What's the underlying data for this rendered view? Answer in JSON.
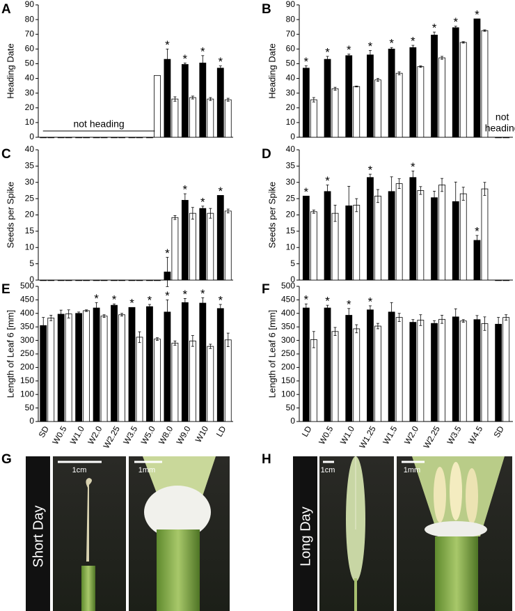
{
  "chart_data": [
    {
      "type": "bar",
      "panel": "A",
      "ylabel": "Heading Date",
      "categories": [
        null,
        null,
        null,
        null,
        null,
        null,
        null,
        null,
        null,
        null,
        null
      ],
      "series": [
        {
          "color": "#000000",
          "values": [
            0,
            0,
            0,
            0,
            0,
            0,
            0,
            53,
            49.5,
            50.5,
            47
          ],
          "errors": [
            0,
            0,
            0,
            0,
            0,
            0,
            0,
            7,
            1,
            5,
            1.5
          ]
        },
        {
          "color": "#ffffff",
          "values": [
            0,
            0,
            0,
            0,
            0,
            0,
            42,
            26,
            27,
            26,
            25.5
          ],
          "errors": [
            0,
            0,
            0,
            0,
            0,
            0,
            0,
            1.5,
            1,
            1,
            1
          ]
        }
      ],
      "ylim": [
        0,
        90
      ],
      "yticks": [
        0,
        10,
        20,
        30,
        40,
        50,
        60,
        70,
        80,
        90
      ],
      "annotations": [
        {
          "text": "*",
          "at": 7
        },
        {
          "text": "*",
          "at": 8
        },
        {
          "text": "*",
          "at": 9
        },
        {
          "text": "*",
          "at": 10
        },
        {
          "text": "not heading",
          "from": 0,
          "to": 6
        }
      ]
    },
    {
      "type": "bar",
      "panel": "B",
      "ylabel": "Heading Date",
      "categories": [
        null,
        null,
        null,
        null,
        null,
        null,
        null,
        null,
        null,
        null
      ],
      "series": [
        {
          "color": "#000000",
          "values": [
            47,
            53,
            55.5,
            56,
            60,
            61,
            69.5,
            74.5,
            80.5,
            0
          ],
          "errors": [
            1.5,
            2,
            1,
            3,
            1,
            1.5,
            2,
            1,
            0,
            0
          ]
        },
        {
          "color": "#ffffff",
          "values": [
            25.5,
            33,
            34.5,
            39,
            43.5,
            48,
            54,
            64.5,
            72.5,
            0
          ],
          "errors": [
            1.5,
            1,
            0.3,
            1,
            1,
            0.5,
            1,
            0.5,
            0.5,
            0
          ]
        }
      ],
      "ylim": [
        0,
        90
      ],
      "yticks": [
        0,
        10,
        20,
        30,
        40,
        50,
        60,
        70,
        80,
        90
      ],
      "annotations": [
        {
          "text": "*",
          "at": 0
        },
        {
          "text": "*",
          "at": 1
        },
        {
          "text": "*",
          "at": 2
        },
        {
          "text": "*",
          "at": 3
        },
        {
          "text": "*",
          "at": 4
        },
        {
          "text": "*",
          "at": 5
        },
        {
          "text": "*",
          "at": 6
        },
        {
          "text": "*",
          "at": 7
        },
        {
          "text": "*",
          "at": 8
        },
        {
          "lines": [
            "not",
            "heading"
          ],
          "at": 9
        }
      ]
    },
    {
      "type": "bar",
      "panel": "C",
      "ylabel": "Seeds per Spike",
      "categories": [
        null,
        null,
        null,
        null,
        null,
        null,
        null,
        null,
        null,
        null,
        null
      ],
      "series": [
        {
          "color": "#000000",
          "values": [
            0,
            0,
            0,
            0,
            0,
            0,
            0,
            2.5,
            24.5,
            22,
            26
          ],
          "errors": [
            0,
            0,
            0,
            0,
            0,
            0,
            0,
            4.5,
            2,
            0.7,
            0
          ]
        },
        {
          "color": "#ffffff",
          "values": [
            0,
            0,
            0,
            0,
            0,
            0,
            0,
            19.2,
            20.5,
            20.5,
            21.2
          ],
          "errors": [
            0,
            0,
            0,
            0,
            0,
            0,
            0,
            0.6,
            1.8,
            1.5,
            0.6
          ]
        }
      ],
      "ylim": [
        0,
        40
      ],
      "yticks": [
        0,
        5,
        10,
        15,
        20,
        25,
        30,
        35,
        40
      ],
      "annotations": [
        {
          "text": "*",
          "at": 7
        },
        {
          "text": "*",
          "at": 8
        },
        {
          "text": "*",
          "at": 9
        },
        {
          "text": "*",
          "at": 10
        }
      ]
    },
    {
      "type": "bar",
      "panel": "D",
      "ylabel": "Seeds per Spike",
      "categories": [
        null,
        null,
        null,
        null,
        null,
        null,
        null,
        null,
        null,
        null
      ],
      "series": [
        {
          "color": "#000000",
          "values": [
            25.8,
            27.2,
            22.8,
            31.5,
            27.2,
            31.5,
            25.3,
            24.1,
            12.2,
            0
          ],
          "errors": [
            0,
            2,
            6,
            1,
            4.5,
            2,
            2,
            6,
            1.5,
            0
          ]
        },
        {
          "color": "#ffffff",
          "values": [
            21,
            20.5,
            23,
            25.8,
            29.6,
            27.5,
            29.2,
            26.5,
            28,
            0
          ],
          "errors": [
            0.5,
            2.5,
            2,
            2,
            1.5,
            1.2,
            2,
            2,
            2,
            0
          ]
        }
      ],
      "ylim": [
        0,
        40
      ],
      "yticks": [
        0,
        5,
        10,
        15,
        20,
        25,
        30,
        35,
        40
      ],
      "annotations": [
        {
          "text": "*",
          "at": 0
        },
        {
          "text": "*",
          "at": 1
        },
        {
          "text": "*",
          "at": 3
        },
        {
          "text": "*",
          "at": 5
        },
        {
          "text": "*",
          "at": 8
        }
      ]
    },
    {
      "type": "bar",
      "panel": "E",
      "ylabel": "Length of Leaf 6 [mm]",
      "categories": [
        "SD",
        "W0.5",
        "W1.0",
        "W2.0",
        "W2.25",
        "W3.5",
        "W5.0",
        "W8.0",
        "W9.0",
        "W10",
        "LD"
      ],
      "series": [
        {
          "color": "#000000",
          "values": [
            355,
            397,
            400,
            420,
            430,
            422,
            425,
            405,
            440,
            438,
            418
          ],
          "errors": [
            30,
            15,
            5,
            20,
            5,
            0,
            8,
            45,
            15,
            20,
            15
          ]
        },
        {
          "color": "#ffffff",
          "values": [
            383,
            398,
            410,
            390,
            395,
            312,
            305,
            290,
            298,
            278,
            302
          ],
          "errors": [
            10,
            15,
            3,
            5,
            5,
            20,
            5,
            8,
            20,
            8,
            25
          ]
        }
      ],
      "ylim": [
        0,
        500
      ],
      "yticks": [
        0,
        50,
        100,
        150,
        200,
        250,
        300,
        350,
        400,
        450,
        500
      ],
      "annotations": [
        {
          "text": "*",
          "at": 3
        },
        {
          "text": "*",
          "at": 4
        },
        {
          "text": "*",
          "at": 5
        },
        {
          "text": "*",
          "at": 6
        },
        {
          "text": "*",
          "at": 7
        },
        {
          "text": "*",
          "at": 8
        },
        {
          "text": "*",
          "at": 9
        },
        {
          "text": "*",
          "at": 10
        }
      ]
    },
    {
      "type": "bar",
      "panel": "F",
      "ylabel": "Length of Leaf 6 [mm]",
      "categories": [
        "LD",
        "W0.5",
        "W1.0",
        "W1.25",
        "W1.5",
        "W2.0",
        "W2.25",
        "W3.5",
        "W4.5",
        "SD"
      ],
      "series": [
        {
          "color": "#000000",
          "values": [
            420,
            420,
            393,
            413,
            405,
            367,
            363,
            387,
            377,
            360
          ],
          "errors": [
            15,
            10,
            25,
            15,
            35,
            10,
            10,
            30,
            15,
            25
          ]
        },
        {
          "color": "#ffffff",
          "values": [
            303,
            333,
            343,
            353,
            385,
            375,
            378,
            372,
            362,
            385
          ],
          "errors": [
            30,
            15,
            15,
            10,
            15,
            20,
            15,
            5,
            25,
            10
          ]
        }
      ],
      "ylim": [
        0,
        500
      ],
      "yticks": [
        0,
        50,
        100,
        150,
        200,
        250,
        300,
        350,
        400,
        450,
        500
      ],
      "annotations": [
        {
          "text": "*",
          "at": 0
        },
        {
          "text": "*",
          "at": 1
        },
        {
          "text": "*",
          "at": 2
        },
        {
          "text": "*",
          "at": 3
        }
      ]
    }
  ],
  "photo_panels": [
    {
      "panel": "G",
      "condition": "Short Day",
      "scales": [
        "1cm",
        "1mm"
      ]
    },
    {
      "panel": "H",
      "condition": "Long Day",
      "scales": [
        "1cm",
        "1mm"
      ]
    }
  ]
}
